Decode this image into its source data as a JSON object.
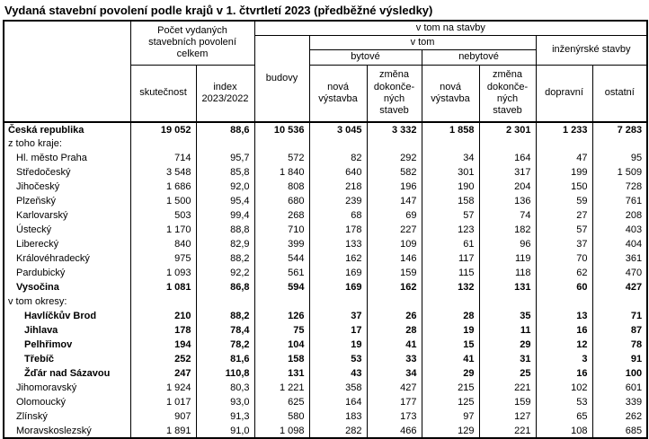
{
  "title": "Vydaná stavební povolení podle krajů v 1. čtvrtletí 2023 (předběžné výsledky)",
  "table": {
    "header": {
      "total_permits": "Počet vydaných\nstavebních povolení\ncelkem",
      "v_tom_na_stavby": "v tom na stavby",
      "skutecnost": "skutečnost",
      "index": "index\n2023/2022",
      "budovy": "budovy",
      "v_tom": "v tom",
      "bytove": "bytové",
      "nebytove": "nebytové",
      "inzenyrske_stavby": "inženýrské stavby",
      "nova_vystavba_byt": "nová\nvýstavba",
      "zmena_dokoncenych_byt": "změna\ndokonče-\nných\nstaveb",
      "nova_vystavba_nebyt": "nová\nvýstavba",
      "zmena_dokoncenych_nebyt": "změna\ndokonče-\nných\nstaveb",
      "dopravni": "dopravní",
      "ostatni": "ostatní"
    },
    "rows": [
      {
        "label": "Česká republika",
        "bold": true,
        "indent": 0,
        "values": [
          "19 052",
          "88,6",
          "10 536",
          "3 045",
          "3 332",
          "1 858",
          "2 301",
          "1 233",
          "7 283"
        ]
      },
      {
        "label": "z toho kraje:",
        "bold": false,
        "indent": 0,
        "values": []
      },
      {
        "label": "Hl. město Praha",
        "bold": false,
        "indent": 1,
        "values": [
          "714",
          "95,7",
          "572",
          "82",
          "292",
          "34",
          "164",
          "47",
          "95"
        ]
      },
      {
        "label": "Středočeský",
        "bold": false,
        "indent": 1,
        "values": [
          "3 548",
          "85,8",
          "1 840",
          "640",
          "582",
          "301",
          "317",
          "199",
          "1 509"
        ]
      },
      {
        "label": "Jihočeský",
        "bold": false,
        "indent": 1,
        "values": [
          "1 686",
          "92,0",
          "808",
          "218",
          "196",
          "190",
          "204",
          "150",
          "728"
        ]
      },
      {
        "label": "Plzeňský",
        "bold": false,
        "indent": 1,
        "values": [
          "1 500",
          "95,4",
          "680",
          "239",
          "147",
          "158",
          "136",
          "59",
          "761"
        ]
      },
      {
        "label": "Karlovarský",
        "bold": false,
        "indent": 1,
        "values": [
          "503",
          "99,4",
          "268",
          "68",
          "69",
          "57",
          "74",
          "27",
          "208"
        ]
      },
      {
        "label": "Ústecký",
        "bold": false,
        "indent": 1,
        "values": [
          "1 170",
          "88,8",
          "710",
          "178",
          "227",
          "123",
          "182",
          "57",
          "403"
        ]
      },
      {
        "label": "Liberecký",
        "bold": false,
        "indent": 1,
        "values": [
          "840",
          "82,9",
          "399",
          "133",
          "109",
          "61",
          "96",
          "37",
          "404"
        ]
      },
      {
        "label": "Královéhradecký",
        "bold": false,
        "indent": 1,
        "values": [
          "975",
          "88,2",
          "544",
          "162",
          "146",
          "117",
          "119",
          "70",
          "361"
        ]
      },
      {
        "label": "Pardubický",
        "bold": false,
        "indent": 1,
        "values": [
          "1 093",
          "92,2",
          "561",
          "169",
          "159",
          "115",
          "118",
          "62",
          "470"
        ]
      },
      {
        "label": "Vysočina",
        "bold": true,
        "indent": 1,
        "values": [
          "1 081",
          "86,8",
          "594",
          "169",
          "162",
          "132",
          "131",
          "60",
          "427"
        ]
      },
      {
        "label": "v tom okresy:",
        "bold": false,
        "indent": 0,
        "values": []
      },
      {
        "label": "Havlíčkův Brod",
        "bold": true,
        "indent": 2,
        "values": [
          "210",
          "88,2",
          "126",
          "37",
          "26",
          "28",
          "35",
          "13",
          "71"
        ]
      },
      {
        "label": "Jihlava",
        "bold": true,
        "indent": 2,
        "values": [
          "178",
          "78,4",
          "75",
          "17",
          "28",
          "19",
          "11",
          "16",
          "87"
        ]
      },
      {
        "label": "Pelhřimov",
        "bold": true,
        "indent": 2,
        "values": [
          "194",
          "78,2",
          "104",
          "19",
          "41",
          "15",
          "29",
          "12",
          "78"
        ]
      },
      {
        "label": "Třebíč",
        "bold": true,
        "indent": 2,
        "values": [
          "252",
          "81,6",
          "158",
          "53",
          "33",
          "41",
          "31",
          "3",
          "91"
        ]
      },
      {
        "label": "Žďár nad Sázavou",
        "bold": true,
        "indent": 2,
        "values": [
          "247",
          "110,8",
          "131",
          "43",
          "34",
          "29",
          "25",
          "16",
          "100"
        ]
      },
      {
        "label": "Jihomoravský",
        "bold": false,
        "indent": 1,
        "values": [
          "1 924",
          "80,3",
          "1 221",
          "358",
          "427",
          "215",
          "221",
          "102",
          "601"
        ]
      },
      {
        "label": "Olomoucký",
        "bold": false,
        "indent": 1,
        "values": [
          "1 017",
          "93,0",
          "625",
          "164",
          "177",
          "125",
          "159",
          "53",
          "339"
        ]
      },
      {
        "label": "Zlínský",
        "bold": false,
        "indent": 1,
        "values": [
          "907",
          "91,3",
          "580",
          "183",
          "173",
          "97",
          "127",
          "65",
          "262"
        ]
      },
      {
        "label": "Moravskoslezský",
        "bold": false,
        "indent": 1,
        "values": [
          "1 891",
          "91,0",
          "1 098",
          "282",
          "466",
          "129",
          "221",
          "108",
          "685"
        ]
      }
    ]
  }
}
